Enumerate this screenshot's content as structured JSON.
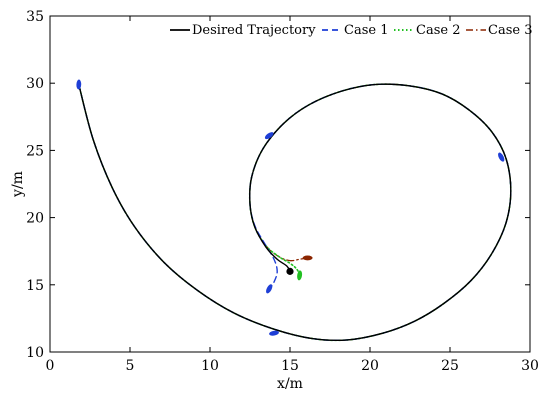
{
  "chart_data": {
    "type": "line",
    "xlabel": "x/m",
    "ylabel": "y/m",
    "xlim": [
      0,
      30
    ],
    "ylim": [
      10,
      35
    ],
    "xticks": [
      0,
      5,
      10,
      15,
      20,
      25,
      30
    ],
    "yticks": [
      10,
      15,
      20,
      25,
      30,
      35
    ],
    "grid": false,
    "legend_position": "top-right",
    "series": [
      {
        "name": "Desired Trajectory",
        "color": "#000000",
        "style": "solid",
        "x": [
          1.8,
          2.7,
          3.9,
          5.3,
          7.1,
          9.2,
          11.5,
          14.0,
          16.4,
          18.6,
          20.8,
          22.8,
          24.6,
          26.3,
          27.6,
          28.5,
          28.8,
          28.5,
          27.6,
          26.2,
          24.5,
          22.5,
          20.3,
          18.2,
          16.2,
          14.6,
          13.3,
          12.6,
          12.5,
          12.8,
          13.5,
          14.2,
          14.8,
          15.0
        ],
        "y": [
          29.9,
          25.8,
          22.2,
          19.3,
          16.7,
          14.6,
          12.9,
          11.7,
          11.0,
          10.9,
          11.4,
          12.3,
          13.6,
          15.3,
          17.3,
          19.6,
          22.0,
          24.4,
          26.4,
          28.0,
          29.2,
          29.8,
          29.9,
          29.4,
          28.4,
          27.0,
          25.1,
          23.0,
          21.0,
          19.3,
          17.8,
          16.9,
          16.4,
          16.0
        ]
      },
      {
        "name": "Case 1",
        "color": "#1f3fd6",
        "style": "dashed",
        "x": [
          1.8,
          2.7,
          3.9,
          5.3,
          7.1,
          9.2,
          11.5,
          14.0,
          16.4,
          18.6,
          20.8,
          22.8,
          24.6,
          26.3,
          27.6,
          28.5,
          28.8,
          28.5,
          27.6,
          26.2,
          24.5,
          22.5,
          20.3,
          18.2,
          16.2,
          14.6,
          13.3,
          12.6,
          12.5,
          12.8,
          13.4,
          14.0,
          14.2,
          14.0,
          13.7
        ],
        "y": [
          29.9,
          25.8,
          22.2,
          19.3,
          16.7,
          14.6,
          12.9,
          11.7,
          11.0,
          10.9,
          11.4,
          12.3,
          13.6,
          15.3,
          17.3,
          19.6,
          22.0,
          24.4,
          26.4,
          28.0,
          29.2,
          29.8,
          29.9,
          29.4,
          28.4,
          27.0,
          25.1,
          23.0,
          21.0,
          19.4,
          18.1,
          16.9,
          16.0,
          15.2,
          14.7
        ]
      },
      {
        "name": "Case 2",
        "color": "#22c022",
        "style": "dotted",
        "x": [
          1.8,
          2.7,
          3.9,
          5.3,
          7.1,
          9.2,
          11.5,
          14.0,
          16.4,
          18.6,
          20.8,
          22.8,
          24.6,
          26.3,
          27.6,
          28.5,
          28.8,
          28.5,
          27.6,
          26.2,
          24.5,
          22.5,
          20.3,
          18.2,
          16.2,
          14.6,
          13.3,
          12.6,
          12.5,
          12.8,
          13.5,
          14.3,
          15.0,
          15.4,
          15.6
        ],
        "y": [
          29.9,
          25.8,
          22.2,
          19.3,
          16.7,
          14.6,
          12.9,
          11.7,
          11.0,
          10.9,
          11.4,
          12.3,
          13.6,
          15.3,
          17.3,
          19.6,
          22.0,
          24.4,
          26.4,
          28.0,
          29.2,
          29.8,
          29.9,
          29.4,
          28.4,
          27.0,
          25.1,
          23.0,
          21.0,
          19.3,
          17.9,
          17.1,
          16.6,
          16.2,
          15.8
        ]
      },
      {
        "name": "Case 3",
        "color": "#8b2500",
        "style": "dashdot",
        "x": [
          1.8,
          2.7,
          3.9,
          5.3,
          7.1,
          9.2,
          11.5,
          14.0,
          16.4,
          18.6,
          20.8,
          22.8,
          24.6,
          26.3,
          27.6,
          28.5,
          28.8,
          28.5,
          27.6,
          26.2,
          24.5,
          22.5,
          20.3,
          18.2,
          16.2,
          14.6,
          13.3,
          12.6,
          12.5,
          12.8,
          13.5,
          14.3,
          15.0,
          15.6,
          16.0
        ],
        "y": [
          29.9,
          25.8,
          22.2,
          19.3,
          16.7,
          14.6,
          12.9,
          11.7,
          11.0,
          10.9,
          11.4,
          12.3,
          13.6,
          15.3,
          17.3,
          19.6,
          22.0,
          24.4,
          26.4,
          28.0,
          29.2,
          29.8,
          29.9,
          29.4,
          28.4,
          27.0,
          25.1,
          23.0,
          21.0,
          19.3,
          17.9,
          17.1,
          16.8,
          16.9,
          17.0
        ]
      }
    ],
    "target_point": {
      "x": 15.0,
      "y": 16.0,
      "color": "#000000"
    },
    "vessels": [
      {
        "x": 1.8,
        "y": 29.9,
        "angle": 88,
        "color": "#1f3fd6"
      },
      {
        "x": 13.7,
        "y": 26.1,
        "angle": 35,
        "color": "#1f3fd6"
      },
      {
        "x": 28.2,
        "y": 24.5,
        "angle": -62,
        "color": "#1f3fd6"
      },
      {
        "x": 14.0,
        "y": 11.4,
        "angle": 10,
        "color": "#1f3fd6"
      },
      {
        "x": 13.7,
        "y": 14.7,
        "angle": 62,
        "color": "#1f3fd6"
      },
      {
        "x": 15.6,
        "y": 15.7,
        "angle": 82,
        "color": "#22c022"
      },
      {
        "x": 16.1,
        "y": 17.0,
        "angle": 0,
        "color": "#8b2500"
      }
    ]
  }
}
